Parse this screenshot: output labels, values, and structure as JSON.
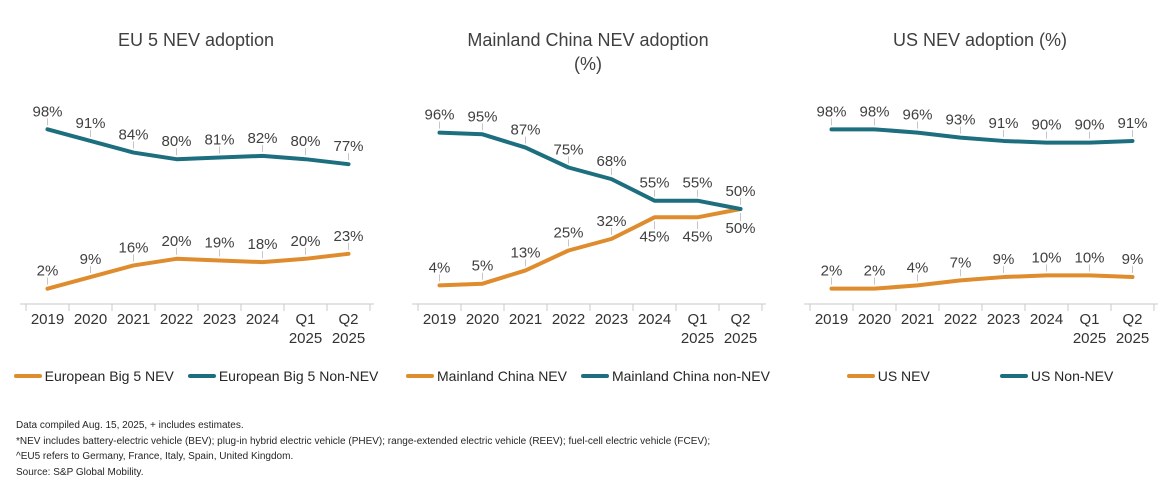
{
  "style": {
    "background": "#FFFFFF",
    "nev_color": "#DF8C2E",
    "non_nev_color": "#1D6F80",
    "label_color": "#404040",
    "axis_color": "#C9C9C9",
    "leader_color": "#C6C6C6"
  },
  "chart_data": [
    {
      "type": "line",
      "title": "EU 5 NEV adoption",
      "categories": [
        "2019",
        "2020",
        "2021",
        "2022",
        "2023",
        "2024",
        "Q1 2025",
        "Q2 2025"
      ],
      "ylim": [
        0,
        100
      ],
      "grid": false,
      "legend_position": "bottom",
      "unit": "%",
      "series": [
        {
          "name": "European Big 5 NEV",
          "color": "#DF8C2E",
          "values": [
            2,
            9,
            16,
            20,
            19,
            18,
            20,
            23
          ],
          "label_side": [
            "above",
            "above",
            "above",
            "above",
            "above",
            "above",
            "above",
            "above"
          ]
        },
        {
          "name": "European Big 5 Non-NEV",
          "color": "#1D6F80",
          "values": [
            98,
            91,
            84,
            80,
            81,
            82,
            80,
            77
          ],
          "label_side": [
            "above",
            "above",
            "above",
            "above",
            "above",
            "above",
            "above",
            "above"
          ]
        }
      ]
    },
    {
      "type": "line",
      "title": "Mainland China NEV adoption\n(%)",
      "categories": [
        "2019",
        "2020",
        "2021",
        "2022",
        "2023",
        "2024",
        "Q1 2025",
        "Q2 2025"
      ],
      "ylim": [
        0,
        100
      ],
      "grid": false,
      "legend_position": "bottom",
      "unit": "%",
      "series": [
        {
          "name": "Mainland China NEV",
          "color": "#DF8C2E",
          "values": [
            4,
            5,
            13,
            25,
            32,
            45,
            45,
            50
          ],
          "label_side": [
            "above",
            "above",
            "above",
            "above",
            "above",
            "below",
            "below",
            "below"
          ]
        },
        {
          "name": "Mainland China non-NEV",
          "color": "#1D6F80",
          "values": [
            96,
            95,
            87,
            75,
            68,
            55,
            55,
            50
          ],
          "label_side": [
            "above",
            "above",
            "above",
            "above",
            "above",
            "above",
            "above",
            "above"
          ]
        }
      ]
    },
    {
      "type": "line",
      "title": "US NEV adoption (%)",
      "categories": [
        "2019",
        "2020",
        "2021",
        "2022",
        "2023",
        "2024",
        "Q1 2025",
        "Q2 2025"
      ],
      "ylim": [
        0,
        100
      ],
      "grid": false,
      "legend_position": "bottom",
      "unit": "%",
      "series": [
        {
          "name": "US NEV",
          "color": "#DF8C2E",
          "values": [
            2,
            2,
            4,
            7,
            9,
            10,
            10,
            9
          ],
          "label_side": [
            "above",
            "above",
            "above",
            "above",
            "above",
            "above",
            "above",
            "above"
          ]
        },
        {
          "name": "US Non-NEV",
          "color": "#1D6F80",
          "values": [
            98,
            98,
            96,
            93,
            91,
            90,
            90,
            91
          ],
          "label_side": [
            "above",
            "above",
            "above",
            "above",
            "above",
            "above",
            "above",
            "above"
          ]
        }
      ]
    }
  ],
  "footnotes": [
    "Data compiled Aug. 15, 2025, + includes estimates.",
    "*NEV includes battery-electric vehicle (BEV); plug-in hybrid electric vehicle (PHEV); range-extended electric vehicle (REEV); fuel-cell electric vehicle (FCEV);",
    "^EU5 refers to Germany, France, Italy, Spain, United Kingdom.",
    "Source: S&P Global Mobility."
  ]
}
